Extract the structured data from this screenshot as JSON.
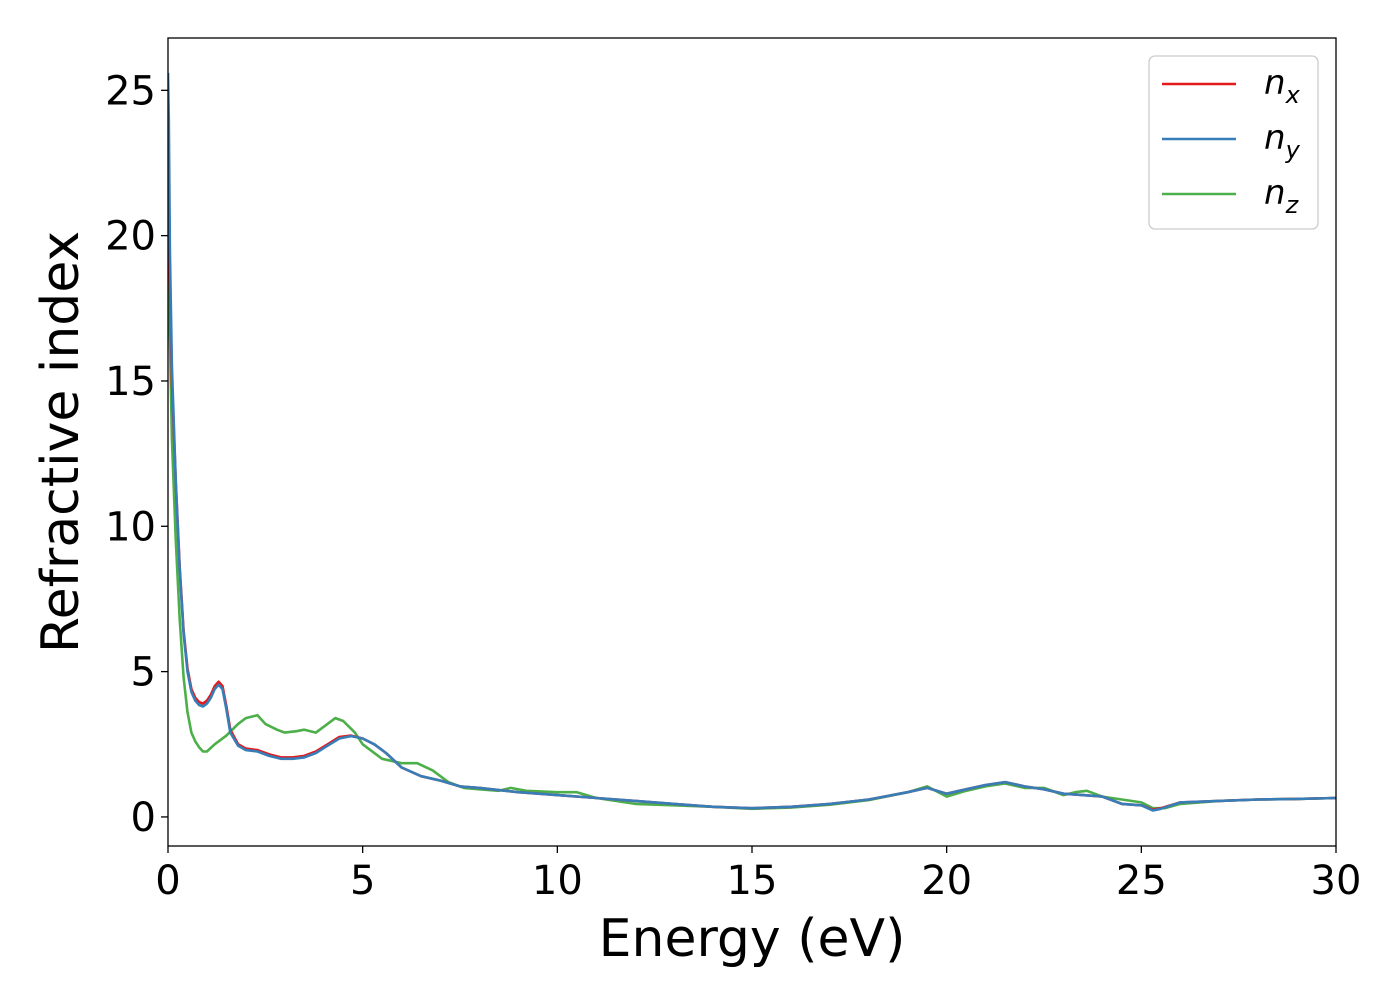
{
  "chart_data": {
    "type": "line",
    "xlabel": "Energy (eV)",
    "ylabel": "Refractive index",
    "xlim": [
      0,
      30
    ],
    "ylim": [
      -1.0,
      26.8
    ],
    "xticks": [
      0,
      5,
      10,
      15,
      20,
      25,
      30
    ],
    "yticks": [
      0,
      5,
      10,
      15,
      20,
      25
    ],
    "grid": false,
    "legend_position": "top-right",
    "series": [
      {
        "name": "n",
        "subscript": "x",
        "color": "#e41a1c",
        "x": [
          0.0,
          0.05,
          0.1,
          0.2,
          0.3,
          0.4,
          0.5,
          0.6,
          0.7,
          0.8,
          0.9,
          1.0,
          1.1,
          1.2,
          1.3,
          1.4,
          1.5,
          1.6,
          1.8,
          2.0,
          2.3,
          2.6,
          2.9,
          3.2,
          3.5,
          3.8,
          4.1,
          4.4,
          4.7,
          5.0,
          5.3,
          5.6,
          6.0,
          6.5,
          7.0,
          7.5,
          8.0,
          9.0,
          10.0,
          11.0,
          12.0,
          13.0,
          14.0,
          15.0,
          16.0,
          17.0,
          18.0,
          19.0,
          19.5,
          20.0,
          20.5,
          21.0,
          21.5,
          22.0,
          22.5,
          23.0,
          23.5,
          24.0,
          24.5,
          25.0,
          25.3,
          25.5,
          26.0,
          27.0,
          28.0,
          29.0,
          30.0
        ],
        "y": [
          22.5,
          18.5,
          15.0,
          11.5,
          8.6,
          6.4,
          5.1,
          4.4,
          4.1,
          3.95,
          3.9,
          4.0,
          4.2,
          4.5,
          4.65,
          4.5,
          3.8,
          3.0,
          2.5,
          2.35,
          2.3,
          2.15,
          2.05,
          2.05,
          2.1,
          2.25,
          2.5,
          2.75,
          2.8,
          2.7,
          2.5,
          2.2,
          1.7,
          1.4,
          1.25,
          1.05,
          1.0,
          0.85,
          0.75,
          0.65,
          0.55,
          0.45,
          0.35,
          0.3,
          0.35,
          0.45,
          0.6,
          0.85,
          1.0,
          0.8,
          0.95,
          1.1,
          1.2,
          1.05,
          0.95,
          0.8,
          0.75,
          0.7,
          0.45,
          0.4,
          0.25,
          0.3,
          0.5,
          0.55,
          0.6,
          0.62,
          0.65
        ]
      },
      {
        "name": "n",
        "subscript": "y",
        "color": "#377eb8",
        "x": [
          0.0,
          0.02,
          0.05,
          0.1,
          0.2,
          0.3,
          0.4,
          0.5,
          0.6,
          0.7,
          0.8,
          0.9,
          1.0,
          1.1,
          1.2,
          1.3,
          1.4,
          1.5,
          1.6,
          1.8,
          2.0,
          2.3,
          2.6,
          2.9,
          3.2,
          3.5,
          3.8,
          4.1,
          4.4,
          4.7,
          5.0,
          5.3,
          5.6,
          6.0,
          6.5,
          7.0,
          7.5,
          8.0,
          9.0,
          10.0,
          11.0,
          12.0,
          13.0,
          14.0,
          15.0,
          16.0,
          17.0,
          18.0,
          19.0,
          19.5,
          20.0,
          20.5,
          21.0,
          21.5,
          22.0,
          22.5,
          23.0,
          23.5,
          24.0,
          24.5,
          25.0,
          25.3,
          25.5,
          26.0,
          27.0,
          28.0,
          29.0,
          30.0
        ],
        "y": [
          25.6,
          24.0,
          19.5,
          15.5,
          11.5,
          8.5,
          6.3,
          5.0,
          4.3,
          4.0,
          3.85,
          3.8,
          3.9,
          4.1,
          4.4,
          4.55,
          4.4,
          3.7,
          2.9,
          2.45,
          2.3,
          2.25,
          2.1,
          2.0,
          2.0,
          2.05,
          2.2,
          2.45,
          2.7,
          2.78,
          2.7,
          2.5,
          2.2,
          1.7,
          1.4,
          1.25,
          1.05,
          1.0,
          0.85,
          0.75,
          0.65,
          0.55,
          0.45,
          0.35,
          0.3,
          0.35,
          0.45,
          0.6,
          0.85,
          1.0,
          0.8,
          0.95,
          1.1,
          1.2,
          1.05,
          0.95,
          0.8,
          0.75,
          0.7,
          0.45,
          0.4,
          0.22,
          0.28,
          0.5,
          0.55,
          0.6,
          0.62,
          0.65
        ]
      },
      {
        "name": "n",
        "subscript": "z",
        "color": "#4daf4a",
        "x": [
          0.0,
          0.05,
          0.1,
          0.2,
          0.3,
          0.4,
          0.5,
          0.6,
          0.7,
          0.8,
          0.9,
          1.0,
          1.2,
          1.5,
          1.8,
          2.0,
          2.3,
          2.5,
          2.8,
          3.0,
          3.3,
          3.5,
          3.8,
          4.0,
          4.3,
          4.5,
          4.8,
          5.0,
          5.5,
          6.0,
          6.4,
          6.8,
          7.2,
          7.6,
          8.0,
          8.5,
          8.8,
          9.2,
          10.0,
          10.5,
          11.0,
          12.0,
          13.0,
          14.0,
          15.0,
          16.0,
          17.0,
          18.0,
          19.0,
          19.5,
          20.0,
          20.5,
          21.0,
          21.5,
          22.0,
          22.5,
          23.0,
          23.3,
          23.6,
          24.0,
          24.5,
          25.0,
          25.3,
          25.6,
          26.0,
          27.0,
          28.0,
          29.0,
          30.0
        ],
        "y": [
          20.0,
          16.5,
          13.0,
          9.5,
          6.8,
          4.8,
          3.6,
          2.9,
          2.6,
          2.4,
          2.25,
          2.25,
          2.5,
          2.8,
          3.2,
          3.4,
          3.5,
          3.2,
          3.0,
          2.9,
          2.95,
          3.0,
          2.9,
          3.1,
          3.4,
          3.3,
          2.9,
          2.5,
          2.0,
          1.85,
          1.85,
          1.6,
          1.2,
          1.0,
          0.95,
          0.9,
          1.0,
          0.9,
          0.85,
          0.85,
          0.65,
          0.45,
          0.4,
          0.35,
          0.28,
          0.32,
          0.42,
          0.58,
          0.85,
          1.05,
          0.7,
          0.9,
          1.05,
          1.15,
          1.0,
          1.0,
          0.75,
          0.85,
          0.9,
          0.7,
          0.6,
          0.5,
          0.3,
          0.3,
          0.45,
          0.55,
          0.6,
          0.62,
          0.65
        ]
      }
    ]
  }
}
